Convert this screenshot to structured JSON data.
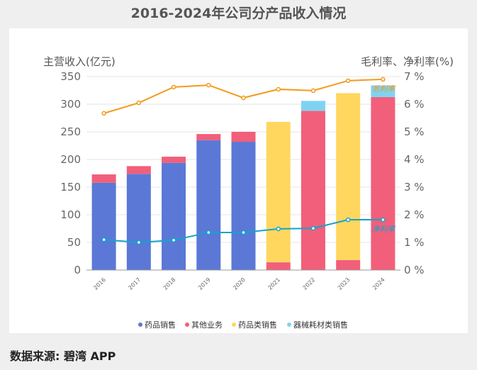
{
  "title": "2016-2024年公司分产品收入情况",
  "source": "数据来源: 碧湾 APP",
  "chart_data": {
    "type": "bar",
    "stacked": true,
    "categories": [
      "2016",
      "2017",
      "2018",
      "2019",
      "2020",
      "2021",
      "2022",
      "2023",
      "2024"
    ],
    "ylabel": "主营收入(亿元)",
    "y2label": "毛利率、净利率(%)",
    "ylim": [
      0,
      350
    ],
    "yticks": [
      "0",
      "50",
      "100",
      "150",
      "200",
      "250",
      "300",
      "350"
    ],
    "y2lim": [
      0,
      7
    ],
    "y2ticks": [
      "0 %",
      "1 %",
      "2 %",
      "3 %",
      "4 %",
      "5 %",
      "6 %",
      "7 %"
    ],
    "grid": true,
    "legend_position": "bottom",
    "series": [
      {
        "name": "药品销售",
        "color": "#5b78d6",
        "values": [
          158,
          174,
          194,
          235,
          232,
          0,
          0,
          0,
          0
        ]
      },
      {
        "name": "其他业务",
        "color": "#f25f7a",
        "values": [
          15,
          14,
          11,
          11,
          18,
          14,
          288,
          18,
          313
        ]
      },
      {
        "name": "药品类销售",
        "color": "#ffd75e",
        "values": [
          0,
          0,
          0,
          0,
          0,
          254,
          0,
          302,
          0
        ]
      },
      {
        "name": "器械耗材类销售",
        "color": "#7fd3f2",
        "values": [
          0,
          0,
          0,
          0,
          0,
          0,
          18,
          0,
          21
        ]
      }
    ],
    "lines": [
      {
        "name": "毛利率",
        "color": "#f29b1d",
        "axis": "right",
        "values": [
          5.67,
          6.05,
          6.62,
          6.69,
          6.23,
          6.54,
          6.49,
          6.85,
          6.9
        ]
      },
      {
        "name": "净利率",
        "color": "#14a3cc",
        "axis": "right",
        "values": [
          1.1,
          1.0,
          1.08,
          1.36,
          1.36,
          1.49,
          1.51,
          1.82,
          1.82
        ]
      }
    ]
  }
}
